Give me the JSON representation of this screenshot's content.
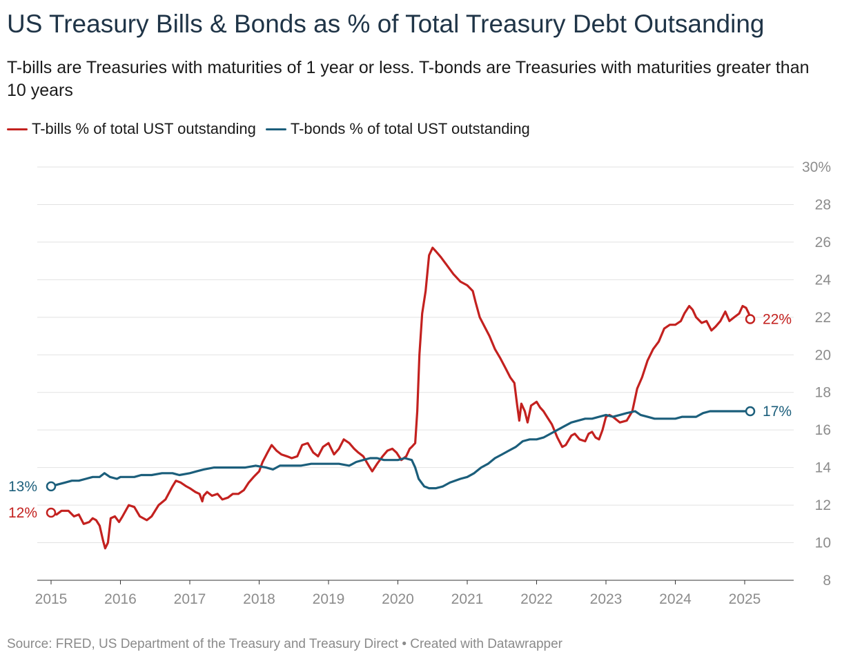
{
  "title": "US Treasury Bills & Bonds as % of Total Treasury Debt Outsanding",
  "subtitle": "T-bills are Treasuries with maturities of 1 year or less. T-bonds are Treasuries with maturities greater than 10 years",
  "source": "Source: FRED, US Department of the Treasury and Treasury Direct • Created with Datawrapper",
  "colors": {
    "tbills": "#c3211f",
    "tbonds": "#1b5e7b",
    "grid": "#e2e2e2",
    "axis": "#8c8c8c"
  },
  "chart_data": {
    "type": "line",
    "ylim": [
      8,
      30
    ],
    "yticks": [
      8,
      10,
      12,
      14,
      16,
      18,
      20,
      22,
      24,
      26,
      28,
      30
    ],
    "ytick_labels": [
      "8",
      "10",
      "12",
      "14",
      "16",
      "18",
      "20",
      "22",
      "24",
      "26",
      "28",
      "30%"
    ],
    "xlim": [
      2015,
      2025.6
    ],
    "xticks": [
      2015,
      2016,
      2017,
      2018,
      2019,
      2020,
      2021,
      2022,
      2023,
      2024,
      2025
    ],
    "xtick_labels": [
      "2015",
      "2016",
      "2017",
      "2018",
      "2019",
      "2020",
      "2021",
      "2022",
      "2023",
      "2024",
      "2025"
    ],
    "grid": true,
    "legend_position": "top-left",
    "series": [
      {
        "key": "tbills",
        "name": "T-bills % of total UST outstanding",
        "start_label": "12%",
        "end_label": "22%",
        "points": [
          [
            2015.0,
            11.6
          ],
          [
            2015.08,
            11.5
          ],
          [
            2015.15,
            11.7
          ],
          [
            2015.25,
            11.7
          ],
          [
            2015.33,
            11.4
          ],
          [
            2015.4,
            11.5
          ],
          [
            2015.47,
            11.0
          ],
          [
            2015.55,
            11.1
          ],
          [
            2015.6,
            11.3
          ],
          [
            2015.65,
            11.2
          ],
          [
            2015.7,
            10.9
          ],
          [
            2015.75,
            10.1
          ],
          [
            2015.78,
            9.7
          ],
          [
            2015.82,
            10.0
          ],
          [
            2015.86,
            11.3
          ],
          [
            2015.92,
            11.4
          ],
          [
            2015.98,
            11.1
          ],
          [
            2016.03,
            11.4
          ],
          [
            2016.12,
            12.0
          ],
          [
            2016.2,
            11.9
          ],
          [
            2016.28,
            11.4
          ],
          [
            2016.38,
            11.2
          ],
          [
            2016.45,
            11.4
          ],
          [
            2016.55,
            12.0
          ],
          [
            2016.65,
            12.3
          ],
          [
            2016.75,
            13.0
          ],
          [
            2016.8,
            13.3
          ],
          [
            2016.87,
            13.2
          ],
          [
            2016.95,
            13.0
          ],
          [
            2017.0,
            12.9
          ],
          [
            2017.08,
            12.7
          ],
          [
            2017.14,
            12.6
          ],
          [
            2017.18,
            12.2
          ],
          [
            2017.2,
            12.5
          ],
          [
            2017.25,
            12.7
          ],
          [
            2017.32,
            12.5
          ],
          [
            2017.4,
            12.6
          ],
          [
            2017.47,
            12.3
          ],
          [
            2017.55,
            12.4
          ],
          [
            2017.62,
            12.6
          ],
          [
            2017.7,
            12.6
          ],
          [
            2017.78,
            12.8
          ],
          [
            2017.85,
            13.2
          ],
          [
            2017.92,
            13.5
          ],
          [
            2018.0,
            13.8
          ],
          [
            2018.05,
            14.3
          ],
          [
            2018.12,
            14.8
          ],
          [
            2018.18,
            15.2
          ],
          [
            2018.25,
            14.9
          ],
          [
            2018.32,
            14.7
          ],
          [
            2018.4,
            14.6
          ],
          [
            2018.47,
            14.5
          ],
          [
            2018.55,
            14.6
          ],
          [
            2018.62,
            15.2
          ],
          [
            2018.7,
            15.3
          ],
          [
            2018.78,
            14.8
          ],
          [
            2018.85,
            14.6
          ],
          [
            2018.92,
            15.1
          ],
          [
            2019.0,
            15.3
          ],
          [
            2019.08,
            14.7
          ],
          [
            2019.15,
            15.0
          ],
          [
            2019.22,
            15.5
          ],
          [
            2019.3,
            15.3
          ],
          [
            2019.37,
            15.0
          ],
          [
            2019.43,
            14.8
          ],
          [
            2019.5,
            14.6
          ],
          [
            2019.58,
            14.1
          ],
          [
            2019.63,
            13.8
          ],
          [
            2019.7,
            14.2
          ],
          [
            2019.78,
            14.6
          ],
          [
            2019.85,
            14.9
          ],
          [
            2019.92,
            15.0
          ],
          [
            2019.98,
            14.8
          ],
          [
            2020.05,
            14.4
          ],
          [
            2020.12,
            14.6
          ],
          [
            2020.17,
            15.0
          ],
          [
            2020.2,
            15.1
          ],
          [
            2020.25,
            15.3
          ],
          [
            2020.28,
            17.0
          ],
          [
            2020.31,
            20.0
          ],
          [
            2020.35,
            22.2
          ],
          [
            2020.4,
            23.4
          ],
          [
            2020.45,
            25.3
          ],
          [
            2020.5,
            25.7
          ],
          [
            2020.55,
            25.5
          ],
          [
            2020.62,
            25.2
          ],
          [
            2020.7,
            24.8
          ],
          [
            2020.8,
            24.3
          ],
          [
            2020.9,
            23.9
          ],
          [
            2021.0,
            23.7
          ],
          [
            2021.08,
            23.4
          ],
          [
            2021.12,
            22.8
          ],
          [
            2021.18,
            22.0
          ],
          [
            2021.25,
            21.5
          ],
          [
            2021.32,
            21.0
          ],
          [
            2021.4,
            20.3
          ],
          [
            2021.48,
            19.8
          ],
          [
            2021.55,
            19.3
          ],
          [
            2021.62,
            18.8
          ],
          [
            2021.68,
            18.5
          ],
          [
            2021.72,
            17.3
          ],
          [
            2021.75,
            16.5
          ],
          [
            2021.78,
            17.4
          ],
          [
            2021.83,
            17.0
          ],
          [
            2021.87,
            16.4
          ],
          [
            2021.92,
            17.3
          ],
          [
            2022.0,
            17.5
          ],
          [
            2022.05,
            17.2
          ],
          [
            2022.1,
            17.0
          ],
          [
            2022.15,
            16.7
          ],
          [
            2022.22,
            16.3
          ],
          [
            2022.3,
            15.6
          ],
          [
            2022.37,
            15.1
          ],
          [
            2022.42,
            15.2
          ],
          [
            2022.5,
            15.7
          ],
          [
            2022.55,
            15.8
          ],
          [
            2022.62,
            15.5
          ],
          [
            2022.7,
            15.4
          ],
          [
            2022.75,
            15.8
          ],
          [
            2022.8,
            15.9
          ],
          [
            2022.85,
            15.6
          ],
          [
            2022.9,
            15.5
          ],
          [
            2022.95,
            16.0
          ],
          [
            2023.0,
            16.7
          ],
          [
            2023.05,
            16.8
          ],
          [
            2023.1,
            16.7
          ],
          [
            2023.2,
            16.4
          ],
          [
            2023.3,
            16.5
          ],
          [
            2023.38,
            17.0
          ],
          [
            2023.45,
            18.2
          ],
          [
            2023.52,
            18.8
          ],
          [
            2023.6,
            19.7
          ],
          [
            2023.68,
            20.3
          ],
          [
            2023.76,
            20.7
          ],
          [
            2023.84,
            21.4
          ],
          [
            2023.92,
            21.6
          ],
          [
            2024.0,
            21.6
          ],
          [
            2024.08,
            21.8
          ],
          [
            2024.13,
            22.2
          ],
          [
            2024.2,
            22.6
          ],
          [
            2024.25,
            22.4
          ],
          [
            2024.3,
            22.0
          ],
          [
            2024.38,
            21.7
          ],
          [
            2024.45,
            21.8
          ],
          [
            2024.52,
            21.3
          ],
          [
            2024.58,
            21.5
          ],
          [
            2024.65,
            21.8
          ],
          [
            2024.72,
            22.3
          ],
          [
            2024.78,
            21.8
          ],
          [
            2024.85,
            22.0
          ],
          [
            2024.92,
            22.2
          ],
          [
            2024.97,
            22.6
          ],
          [
            2025.02,
            22.5
          ],
          [
            2025.06,
            22.2
          ],
          [
            2025.08,
            21.9
          ]
        ]
      },
      {
        "key": "tbonds",
        "name": "T-bonds % of total UST outstanding",
        "start_label": "13%",
        "end_label": "17%",
        "points": [
          [
            2015.0,
            13.0
          ],
          [
            2015.1,
            13.1
          ],
          [
            2015.2,
            13.2
          ],
          [
            2015.3,
            13.3
          ],
          [
            2015.4,
            13.3
          ],
          [
            2015.5,
            13.4
          ],
          [
            2015.6,
            13.5
          ],
          [
            2015.7,
            13.5
          ],
          [
            2015.77,
            13.7
          ],
          [
            2015.85,
            13.5
          ],
          [
            2015.95,
            13.4
          ],
          [
            2016.0,
            13.5
          ],
          [
            2016.1,
            13.5
          ],
          [
            2016.2,
            13.5
          ],
          [
            2016.3,
            13.6
          ],
          [
            2016.45,
            13.6
          ],
          [
            2016.6,
            13.7
          ],
          [
            2016.75,
            13.7
          ],
          [
            2016.85,
            13.6
          ],
          [
            2017.0,
            13.7
          ],
          [
            2017.1,
            13.8
          ],
          [
            2017.2,
            13.9
          ],
          [
            2017.35,
            14.0
          ],
          [
            2017.5,
            14.0
          ],
          [
            2017.65,
            14.0
          ],
          [
            2017.8,
            14.0
          ],
          [
            2017.95,
            14.1
          ],
          [
            2018.1,
            14.0
          ],
          [
            2018.2,
            13.9
          ],
          [
            2018.3,
            14.1
          ],
          [
            2018.45,
            14.1
          ],
          [
            2018.6,
            14.1
          ],
          [
            2018.75,
            14.2
          ],
          [
            2018.9,
            14.2
          ],
          [
            2019.0,
            14.2
          ],
          [
            2019.15,
            14.2
          ],
          [
            2019.3,
            14.1
          ],
          [
            2019.4,
            14.3
          ],
          [
            2019.5,
            14.4
          ],
          [
            2019.6,
            14.5
          ],
          [
            2019.7,
            14.5
          ],
          [
            2019.8,
            14.4
          ],
          [
            2019.9,
            14.4
          ],
          [
            2020.0,
            14.4
          ],
          [
            2020.1,
            14.5
          ],
          [
            2020.2,
            14.4
          ],
          [
            2020.25,
            14.0
          ],
          [
            2020.3,
            13.4
          ],
          [
            2020.38,
            13.0
          ],
          [
            2020.45,
            12.9
          ],
          [
            2020.55,
            12.9
          ],
          [
            2020.65,
            13.0
          ],
          [
            2020.75,
            13.2
          ],
          [
            2020.9,
            13.4
          ],
          [
            2021.0,
            13.5
          ],
          [
            2021.1,
            13.7
          ],
          [
            2021.2,
            14.0
          ],
          [
            2021.3,
            14.2
          ],
          [
            2021.4,
            14.5
          ],
          [
            2021.5,
            14.7
          ],
          [
            2021.6,
            14.9
          ],
          [
            2021.7,
            15.1
          ],
          [
            2021.8,
            15.4
          ],
          [
            2021.9,
            15.5
          ],
          [
            2022.0,
            15.5
          ],
          [
            2022.1,
            15.6
          ],
          [
            2022.2,
            15.8
          ],
          [
            2022.3,
            16.0
          ],
          [
            2022.4,
            16.2
          ],
          [
            2022.5,
            16.4
          ],
          [
            2022.6,
            16.5
          ],
          [
            2022.7,
            16.6
          ],
          [
            2022.8,
            16.6
          ],
          [
            2022.9,
            16.7
          ],
          [
            2023.0,
            16.8
          ],
          [
            2023.1,
            16.7
          ],
          [
            2023.2,
            16.8
          ],
          [
            2023.3,
            16.9
          ],
          [
            2023.42,
            17.0
          ],
          [
            2023.5,
            16.8
          ],
          [
            2023.6,
            16.7
          ],
          [
            2023.7,
            16.6
          ],
          [
            2023.8,
            16.6
          ],
          [
            2023.9,
            16.6
          ],
          [
            2024.0,
            16.6
          ],
          [
            2024.1,
            16.7
          ],
          [
            2024.2,
            16.7
          ],
          [
            2024.3,
            16.7
          ],
          [
            2024.4,
            16.9
          ],
          [
            2024.5,
            17.0
          ],
          [
            2024.6,
            17.0
          ],
          [
            2024.7,
            17.0
          ],
          [
            2024.8,
            17.0
          ],
          [
            2024.9,
            17.0
          ],
          [
            2025.0,
            17.0
          ],
          [
            2025.08,
            17.0
          ]
        ]
      }
    ]
  }
}
